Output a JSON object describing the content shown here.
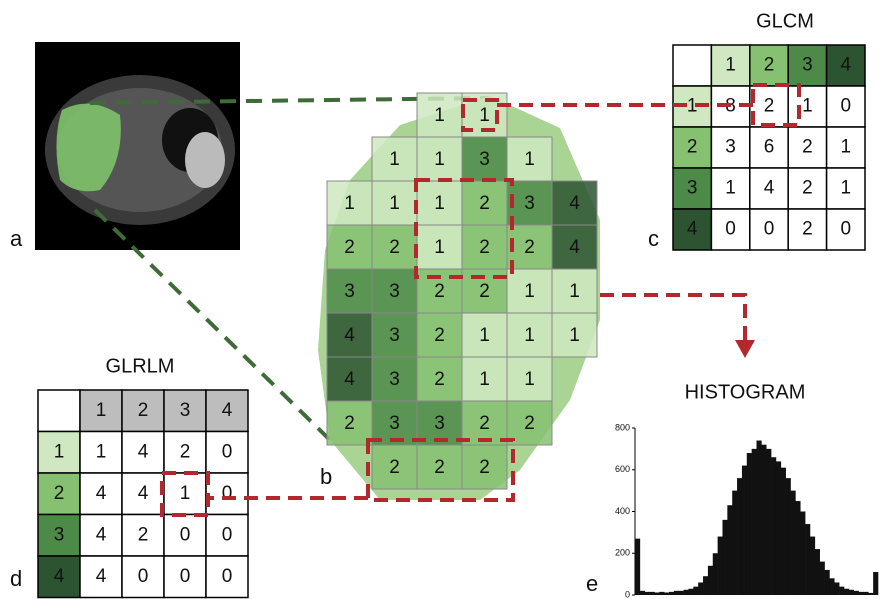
{
  "panel_labels": [
    "a",
    "b",
    "c",
    "d",
    "e"
  ],
  "level_colors": [
    "#cfe8c1",
    "#86c172",
    "#4d8a48",
    "#2c5430"
  ],
  "grid": {
    "rows": [
      [
        null,
        null,
        1,
        1,
        null,
        null
      ],
      [
        null,
        1,
        1,
        3,
        1,
        null
      ],
      [
        1,
        1,
        1,
        2,
        3,
        4
      ],
      [
        2,
        2,
        1,
        2,
        2,
        4
      ],
      [
        3,
        3,
        2,
        2,
        1,
        1
      ],
      [
        4,
        3,
        2,
        1,
        1,
        1
      ],
      [
        4,
        3,
        2,
        1,
        1,
        null
      ],
      [
        2,
        3,
        3,
        2,
        2,
        null
      ],
      [
        null,
        2,
        2,
        2,
        null,
        null
      ]
    ]
  },
  "glcm": {
    "title": "GLCM",
    "header": [
      1,
      2,
      3,
      4
    ],
    "rows": [
      {
        "label": 1,
        "cells": [
          8,
          2,
          1,
          0
        ]
      },
      {
        "label": 2,
        "cells": [
          3,
          6,
          2,
          1
        ]
      },
      {
        "label": 3,
        "cells": [
          1,
          4,
          2,
          1
        ]
      },
      {
        "label": 4,
        "cells": [
          0,
          0,
          2,
          0
        ]
      }
    ]
  },
  "glrlm": {
    "title": "GLRLM",
    "header": [
      1,
      2,
      3,
      4
    ],
    "rows": [
      {
        "label": 1,
        "cells": [
          1,
          4,
          2,
          0
        ]
      },
      {
        "label": 2,
        "cells": [
          4,
          4,
          1,
          0
        ]
      },
      {
        "label": 3,
        "cells": [
          4,
          2,
          0,
          0
        ]
      },
      {
        "label": 4,
        "cells": [
          4,
          0,
          0,
          0
        ]
      }
    ]
  },
  "chart_data": {
    "type": "histogram",
    "title": "HISTOGRAM",
    "color": "#111111",
    "values": [
      270,
      20,
      15,
      15,
      12,
      15,
      12,
      15,
      20,
      20,
      25,
      30,
      40,
      60,
      90,
      140,
      200,
      280,
      360,
      430,
      500,
      560,
      620,
      680,
      700,
      740,
      720,
      700,
      660,
      640,
      610,
      560,
      500,
      450,
      400,
      340,
      280,
      220,
      160,
      120,
      80,
      60,
      40,
      30,
      25,
      20,
      15,
      15,
      10,
      110
    ],
    "ylim": [
      0,
      800
    ],
    "yticks": [
      0,
      200,
      400,
      600,
      800
    ]
  }
}
